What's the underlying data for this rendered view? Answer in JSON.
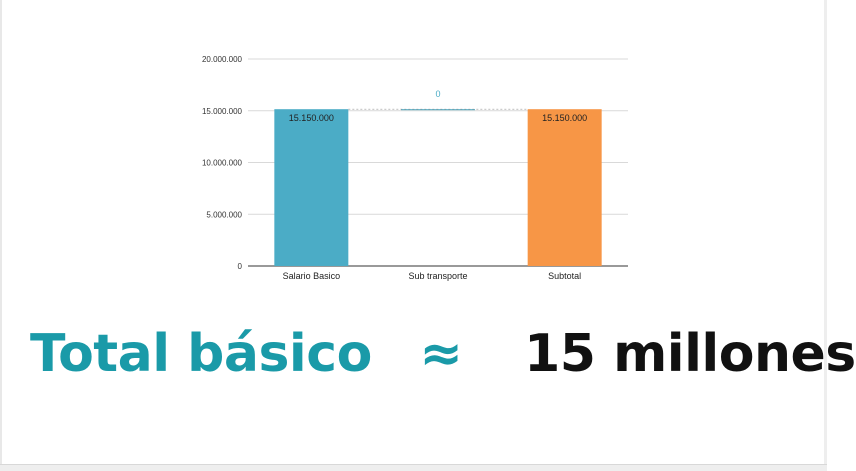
{
  "chart_data": {
    "type": "bar",
    "subtype": "waterfall",
    "categories": [
      "Salario Basico",
      "Sub transporte",
      "Subtotal"
    ],
    "values": [
      15150000,
      0,
      15150000
    ],
    "data_labels": [
      "15.150.000",
      "0",
      "15.150.000"
    ],
    "colors": [
      "#4bacc6",
      "#4bacc6",
      "#f79646"
    ],
    "yticks": [
      "0",
      "5.000.000",
      "10.000.000",
      "15.000.000",
      "20.000.000"
    ],
    "ylim": [
      0,
      20000000
    ],
    "grid": true,
    "title": "",
    "xlabel": "",
    "ylabel": ""
  },
  "caption": {
    "label": "Total básico",
    "approx": "≈",
    "value": "15 millones"
  }
}
